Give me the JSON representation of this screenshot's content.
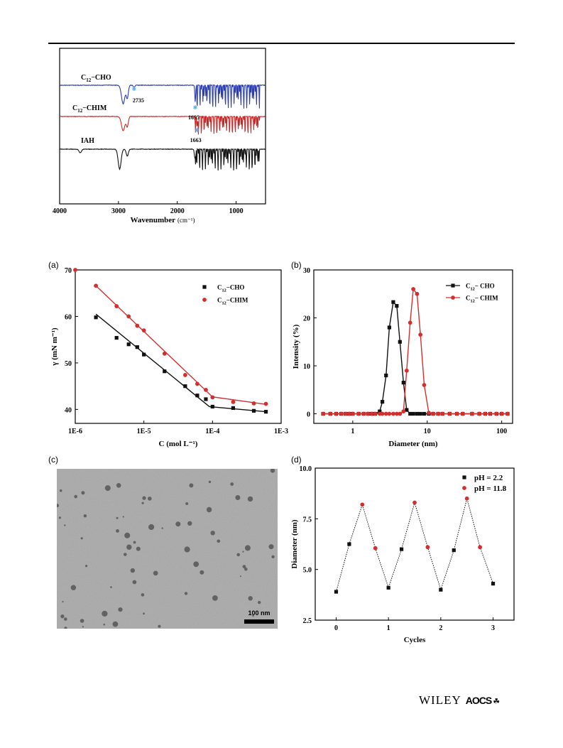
{
  "figure_ir": {
    "xlabel": "Wavenumber",
    "xlabel_unit": "(cm⁻¹)",
    "xticks": [
      "4000",
      "3000",
      "2000",
      "1000"
    ],
    "labels": [
      {
        "name": "C",
        "sub": "12",
        "suffix": "−CHO"
      },
      {
        "name": "C",
        "sub": "12",
        "suffix": "−CHIM"
      },
      {
        "name": "IAH",
        "sub": "",
        "suffix": ""
      }
    ],
    "annotations": [
      "2735",
      "1695",
      "1663"
    ],
    "colors": {
      "cho": "#2b3bb0",
      "chim": "#c62828",
      "iah": "#111111",
      "marker": "#5aa9e6"
    }
  },
  "panel_labels": {
    "a": "(a)",
    "b": "(b)",
    "c": "(c)",
    "d": "(d)"
  },
  "tem": {
    "scale_label": "100 nm"
  },
  "footer": {
    "publisher": "WILEY",
    "society": "AOCS",
    "mark": "☘"
  },
  "chart_data": [
    {
      "type": "line",
      "panel": "ir",
      "xlabel": "Wavenumber (cm⁻¹)",
      "ylabel": "",
      "xlim": [
        4000,
        500
      ],
      "x_reversed": true,
      "series": [
        {
          "name": "C12−CHO",
          "color": "#2b3bb0"
        },
        {
          "name": "C12−CHIM",
          "color": "#c62828"
        },
        {
          "name": "IAH",
          "color": "#111111"
        }
      ],
      "annotations": [
        {
          "text": "2735",
          "x": 2735,
          "series": "C12−CHO"
        },
        {
          "text": "1695",
          "x": 1695,
          "series": "C12−CHO"
        },
        {
          "text": "1663",
          "x": 1663,
          "series": "C12−CHIM"
        }
      ]
    },
    {
      "type": "scatter",
      "panel": "a",
      "xscale": "log",
      "xlabel": "C (mol L⁻¹)",
      "ylabel": "γ (mN m⁻¹)",
      "xlim": [
        1e-06,
        0.001
      ],
      "ylim": [
        37,
        70
      ],
      "xticks": [
        1e-06,
        1e-05,
        0.0001,
        0.001
      ],
      "xticklabels": [
        "1E-6",
        "1E-5",
        "1E-4",
        "1E-3"
      ],
      "yticks": [
        40,
        50,
        60,
        70
      ],
      "legend": "top-right",
      "series": [
        {
          "name": "C12−CHO",
          "color": "#111111",
          "marker": "square",
          "x": [
            2e-06,
            4e-06,
            6e-06,
            8e-06,
            1e-05,
            2e-05,
            4e-05,
            6e-05,
            8e-05,
            0.0001,
            0.0002,
            0.0004,
            0.0006
          ],
          "y": [
            59.8,
            55.4,
            54.0,
            53.4,
            51.8,
            48.2,
            45.0,
            43.0,
            42.2,
            40.6,
            40.3,
            39.7,
            39.5
          ]
        },
        {
          "name": "C12−CHIM",
          "color": "#d32f2f",
          "marker": "circle",
          "x": [
            1e-06,
            2e-06,
            4e-06,
            6e-06,
            8e-06,
            1e-05,
            2e-05,
            4e-05,
            6e-05,
            8e-05,
            0.0001,
            0.0002,
            0.0004,
            0.0006
          ],
          "y": [
            70.0,
            66.6,
            62.2,
            60.0,
            58.0,
            57.0,
            52.0,
            47.4,
            45.5,
            44.2,
            42.6,
            41.6,
            41.3,
            41.2
          ]
        }
      ],
      "fits": [
        {
          "series": "C12−CHO",
          "points": [
            [
              2e-06,
              60.5
            ],
            [
              9e-05,
              40.6
            ],
            [
              0.0006,
              39.5
            ]
          ]
        },
        {
          "series": "C12−CHIM",
          "points": [
            [
              2e-06,
              66.6
            ],
            [
              0.0001,
              42.7
            ],
            [
              0.0006,
              41.1
            ]
          ]
        }
      ]
    },
    {
      "type": "line",
      "panel": "b",
      "xscale": "log",
      "xlabel": "Diameter (nm)",
      "ylabel": "Intensity (%)",
      "xlim": [
        0.3,
        140
      ],
      "ylim": [
        -2,
        30
      ],
      "xticks": [
        1,
        10,
        100
      ],
      "xticklabels": [
        "1",
        "10",
        "100"
      ],
      "yticks": [
        0,
        10,
        20,
        30
      ],
      "legend": "top-right",
      "series": [
        {
          "name": "C12− CHO",
          "color": "#111111",
          "marker": "square",
          "x": [
            0.4,
            0.5,
            0.6,
            0.7,
            0.8,
            0.9,
            1.0,
            1.2,
            1.4,
            1.6,
            1.8,
            2.0,
            2.3,
            2.5,
            2.8,
            3.1,
            3.5,
            3.9,
            4.3,
            4.8,
            5.3,
            5.9,
            6.5,
            7.3,
            8.1,
            9.1,
            10.5,
            12.0,
            14.0,
            16.0,
            20.0,
            25.0,
            30.0,
            40.0,
            50.0,
            60.0,
            70.0,
            85.0,
            100.0,
            120.0
          ],
          "y": [
            0,
            0,
            0,
            0,
            0,
            0,
            0,
            0,
            0,
            0,
            0,
            0,
            0.5,
            2.5,
            8.0,
            18.0,
            23.3,
            22.5,
            15.0,
            6.5,
            0.8,
            0,
            0,
            0,
            0,
            0,
            0,
            0,
            0,
            0,
            0,
            0,
            0,
            0,
            0,
            0,
            0,
            0,
            0,
            0
          ]
        },
        {
          "name": "C12− CHIM",
          "color": "#d32f2f",
          "marker": "circle",
          "x": [
            0.4,
            0.5,
            0.6,
            0.7,
            0.8,
            0.9,
            1.0,
            1.2,
            1.4,
            1.6,
            1.8,
            2.0,
            2.3,
            2.5,
            2.8,
            3.1,
            3.5,
            3.9,
            4.3,
            4.8,
            5.3,
            5.9,
            6.5,
            7.3,
            8.1,
            9.1,
            10.5,
            12.0,
            14.0,
            16.0,
            20.0,
            25.0,
            30.0,
            40.0,
            50.0,
            60.0,
            70.0,
            85.0,
            100.0,
            120.0
          ],
          "y": [
            0,
            0,
            0,
            0,
            0,
            0,
            0,
            0,
            0,
            0,
            0,
            0,
            0,
            0,
            0,
            0,
            0,
            0,
            0,
            0.5,
            9.0,
            19.0,
            26.0,
            25.0,
            16.5,
            6.0,
            0.2,
            0,
            0,
            0,
            0,
            0,
            0,
            0,
            0,
            0,
            0,
            0,
            0,
            0
          ]
        }
      ]
    },
    {
      "type": "line",
      "panel": "d",
      "xlabel": "Cycles",
      "ylabel": "Diameter (nm)",
      "xlim": [
        -0.4,
        3.4
      ],
      "ylim": [
        2.5,
        10.0
      ],
      "xticks": [
        0,
        1,
        2,
        3
      ],
      "yticks": [
        2.5,
        5.0,
        7.5,
        10.0
      ],
      "yticklabels": [
        "2.5",
        "5.0",
        "7.5",
        "10.0"
      ],
      "legend": "top-right",
      "line": {
        "style": "dotted",
        "color": "#111111"
      },
      "series": [
        {
          "name": "pH = 2.2",
          "color": "#111111",
          "marker": "square",
          "x": [
            0,
            0.25,
            1.0,
            1.25,
            2.0,
            2.25,
            3.0
          ],
          "y": [
            3.9,
            6.25,
            4.1,
            6.0,
            4.0,
            5.95,
            4.3
          ]
        },
        {
          "name": "pH = 11.8",
          "color": "#d32f2f",
          "marker": "circle",
          "x": [
            0.5,
            0.75,
            1.5,
            1.75,
            2.5,
            2.75
          ],
          "y": [
            8.2,
            6.05,
            8.3,
            6.1,
            8.5,
            6.1
          ]
        }
      ],
      "path_order_x": [
        0,
        0.25,
        0.5,
        0.75,
        1.0,
        1.25,
        1.5,
        1.75,
        2.0,
        2.25,
        2.5,
        2.75,
        3.0
      ]
    }
  ]
}
